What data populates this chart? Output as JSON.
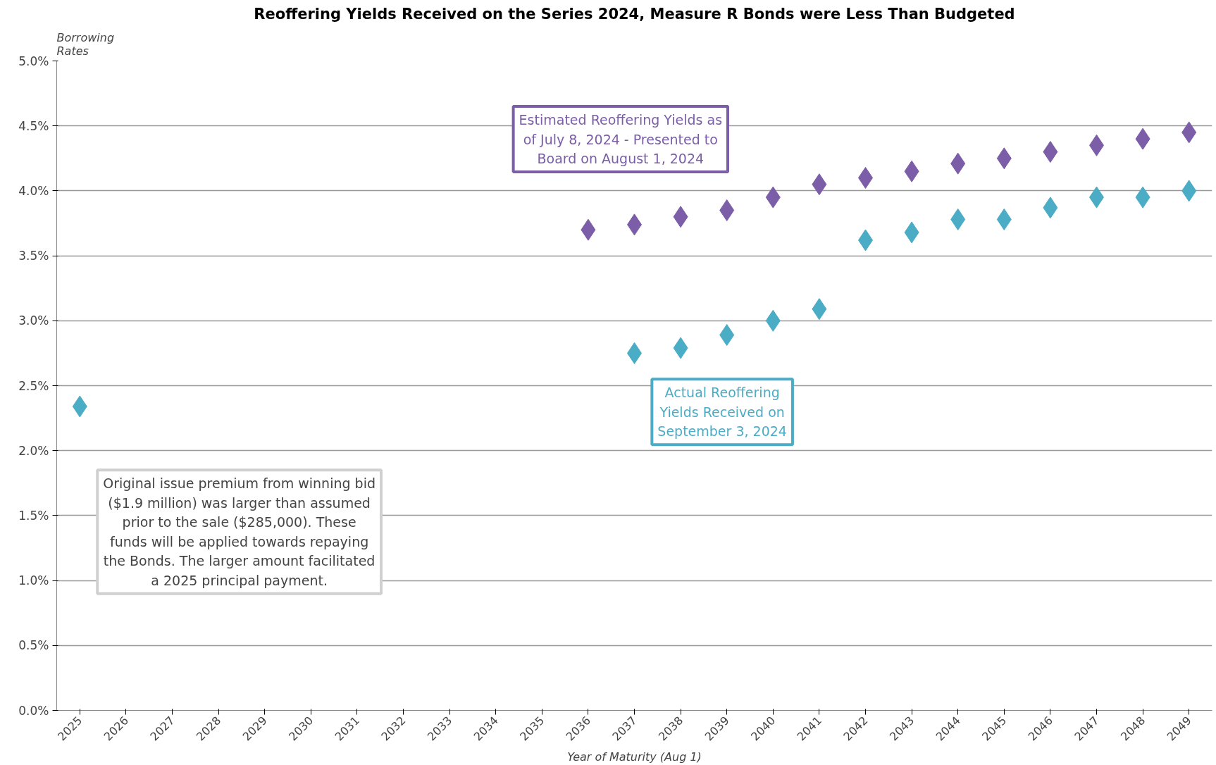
{
  "chart_data": {
    "type": "scatter",
    "title": "Reoffering Yields Received on the Series 2024, Measure R Bonds were Less Than Budgeted",
    "xlabel": "Year of Maturity (Aug 1)",
    "ylabel": "Borrowing Rates",
    "categories": [
      "2025",
      "2026",
      "2027",
      "2028",
      "2029",
      "2030",
      "2031",
      "2032",
      "2033",
      "2034",
      "2035",
      "2036",
      "2037",
      "2038",
      "2039",
      "2040",
      "2041",
      "2042",
      "2043",
      "2044",
      "2045",
      "2046",
      "2047",
      "2048",
      "2049"
    ],
    "series": [
      {
        "name": "Estimated Reoffering Yields as of July 8, 2024 - Presented to Board on August 1, 2024",
        "color": "#7b5ea7",
        "values": [
          null,
          null,
          null,
          null,
          null,
          null,
          null,
          null,
          null,
          null,
          null,
          3.7,
          3.74,
          3.8,
          3.85,
          3.95,
          4.05,
          4.1,
          4.15,
          4.21,
          4.25,
          4.3,
          4.35,
          4.4,
          4.45
        ]
      },
      {
        "name": "Actual Reoffering Yields Received on September 3, 2024",
        "color": "#4bacc6",
        "values": [
          2.34,
          null,
          null,
          null,
          null,
          null,
          null,
          null,
          null,
          null,
          null,
          null,
          2.75,
          2.79,
          2.89,
          3.0,
          3.09,
          3.62,
          3.68,
          3.78,
          3.78,
          3.87,
          3.95,
          3.95,
          4.0
        ]
      }
    ],
    "annotations": [
      "Original issue premium from winning bid ($1.9 million) was larger than assumed prior to the sale ($285,000). These funds will be applied towards repaying the Bonds. The larger amount facilitated a 2025 principal payment."
    ],
    "ylim": [
      0,
      5
    ],
    "yticks": [
      {
        "value": 0,
        "label": "0.0%"
      },
      {
        "value": 0.5,
        "label": "0.5%"
      },
      {
        "value": 1,
        "label": "1.0%"
      },
      {
        "value": 1.5,
        "label": "1.5%"
      },
      {
        "value": 2,
        "label": "2.0%"
      },
      {
        "value": 2.5,
        "label": "2.5%"
      },
      {
        "value": 3,
        "label": "3.0%"
      },
      {
        "value": 3.5,
        "label": "3.5%"
      },
      {
        "value": 4,
        "label": "4.0%"
      },
      {
        "value": 4.5,
        "label": "4.5%"
      },
      {
        "value": 5,
        "label": "5.0%"
      }
    ],
    "grid": "y",
    "legend": false,
    "marker": "diamond"
  }
}
